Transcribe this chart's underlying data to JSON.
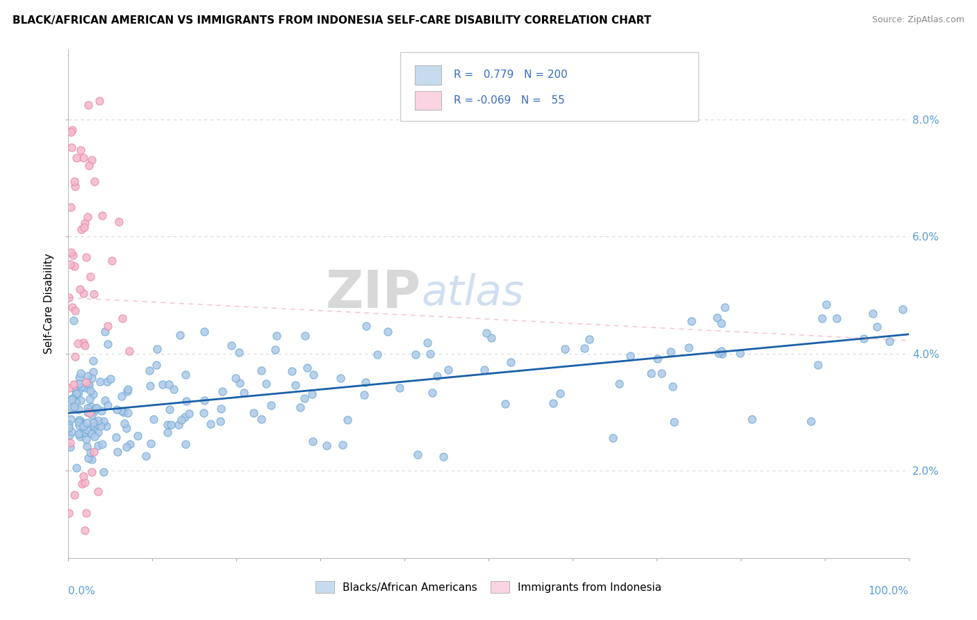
{
  "title": "BLACK/AFRICAN AMERICAN VS IMMIGRANTS FROM INDONESIA SELF-CARE DISABILITY CORRELATION CHART",
  "source": "Source: ZipAtlas.com",
  "ylabel": "Self-Care Disability",
  "legend_label1": "Blacks/African Americans",
  "legend_label2": "Immigrants from Indonesia",
  "r1": 0.779,
  "n1": 200,
  "r2": -0.069,
  "n2": 55,
  "blue_dot_color": "#aec8e8",
  "blue_dot_edge": "#6aaad4",
  "pink_dot_color": "#f4b8cc",
  "pink_dot_edge": "#e8849f",
  "blue_line_color": "#1a5fa8",
  "pink_line_color": "#e87090",
  "blue_legend_fill": "#c6dcee",
  "pink_legend_fill": "#fad4e2",
  "legend_text_color": "#3a6bbf",
  "ytick_color": "#5b9bd5",
  "xtick_color": "#5b9bd5",
  "grid_color": "#d8d8d8",
  "watermark_zip_color": "#c8c8c8",
  "watermark_atlas_color": "#b8cfe8"
}
